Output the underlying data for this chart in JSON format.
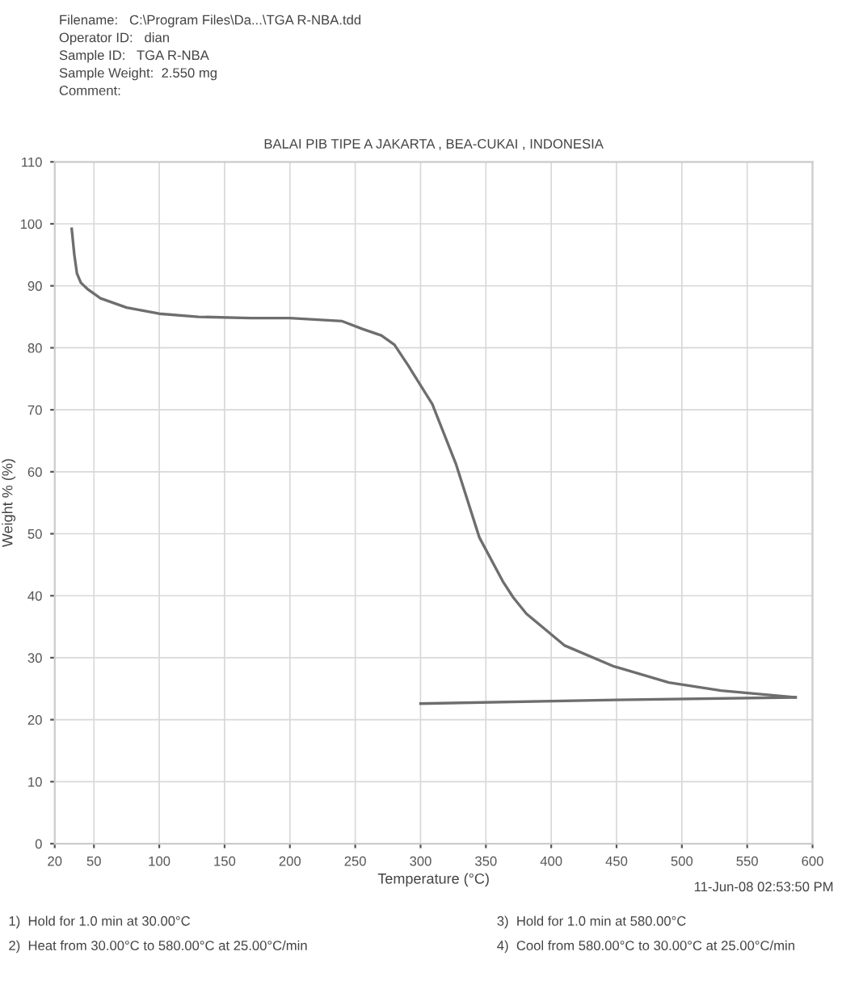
{
  "chart_data": {
    "type": "line",
    "title": "BALAI PIB TIPE A JAKARTA , BEA-CUKAI , INDONESIA",
    "xlabel": "Temperature (°C)",
    "ylabel": "Weight % (%)",
    "series": [
      {
        "color": "#6e6e6e",
        "x": [
          33,
          35,
          37,
          40,
          45,
          55,
          75,
          100,
          130,
          170,
          200,
          240,
          256,
          270,
          280,
          291,
          309,
          327,
          345,
          363,
          371,
          381,
          410,
          448,
          490,
          530,
          587
        ],
        "values": [
          99.2,
          95,
          92,
          90.5,
          89.5,
          88,
          86.5,
          85.5,
          85,
          84.8,
          84.8,
          84.3,
          83,
          82,
          80.5,
          77,
          70.9,
          61.3,
          49.4,
          42.3,
          39.7,
          37.1,
          32,
          28.6,
          26,
          24.7,
          23.6
        ]
      },
      {
        "color": "#6e6e6e",
        "x": [
          587,
          450,
          300
        ],
        "values": [
          23.6,
          23.2,
          22.6
        ]
      }
    ],
    "xlim": [
      20,
      600
    ],
    "xticks": [
      20,
      50,
      100,
      150,
      200,
      250,
      300,
      350,
      400,
      450,
      500,
      550,
      600
    ],
    "ylim": [
      0,
      110
    ],
    "yticks": [
      0,
      10,
      20,
      30,
      40,
      50,
      60,
      70,
      80,
      90,
      100,
      110
    ],
    "grid": true,
    "line_style": "solid",
    "marker": "none",
    "annotations": [
      "Filename:   C:\\Program Files\\Da...\\TGA R-NBA.tdd",
      "Operator ID:   dian",
      "Sample ID:   TGA R-NBA",
      "Sample Weight:  2.550 mg",
      "Comment:",
      "11-Jun-08 02:53:50 PM",
      "1)  Hold for 1.0 min at 30.00°C",
      "2)  Heat from 30.00°C to 580.00°C at 25.00°C/min",
      "3)  Hold for 1.0 min at 580.00°C",
      "4)  Cool from 580.00°C to 30.00°C at 25.00°C/min"
    ]
  }
}
